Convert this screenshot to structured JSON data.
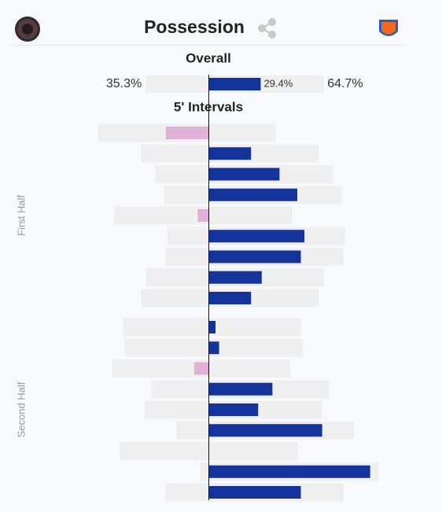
{
  "header": {
    "title": "Possession"
  },
  "overall": {
    "title": "Overall",
    "home": {
      "value": 35.3,
      "label": "35.3%"
    },
    "away": {
      "value": 64.7,
      "label": "64.7%"
    },
    "difference": {
      "value": 29.4,
      "label": "29.4%"
    }
  },
  "intervals": {
    "title": "5' Intervals",
    "home_color": "#e0b1d6",
    "away_color": "#14339b",
    "bar_color": "#efefef",
    "halves": [
      {
        "label": "First Half",
        "home": [
          62,
          38,
          30,
          25,
          53,
          23,
          24,
          35,
          38
        ],
        "away": [
          38,
          62,
          70,
          75,
          47,
          77,
          76,
          65,
          62
        ]
      },
      {
        "label": "Second Half",
        "home": [
          48,
          47,
          54,
          32,
          36,
          18,
          50,
          4.5,
          24
        ],
        "away": [
          52,
          53,
          46,
          68,
          64,
          82,
          50,
          95.5,
          76
        ]
      }
    ]
  }
}
